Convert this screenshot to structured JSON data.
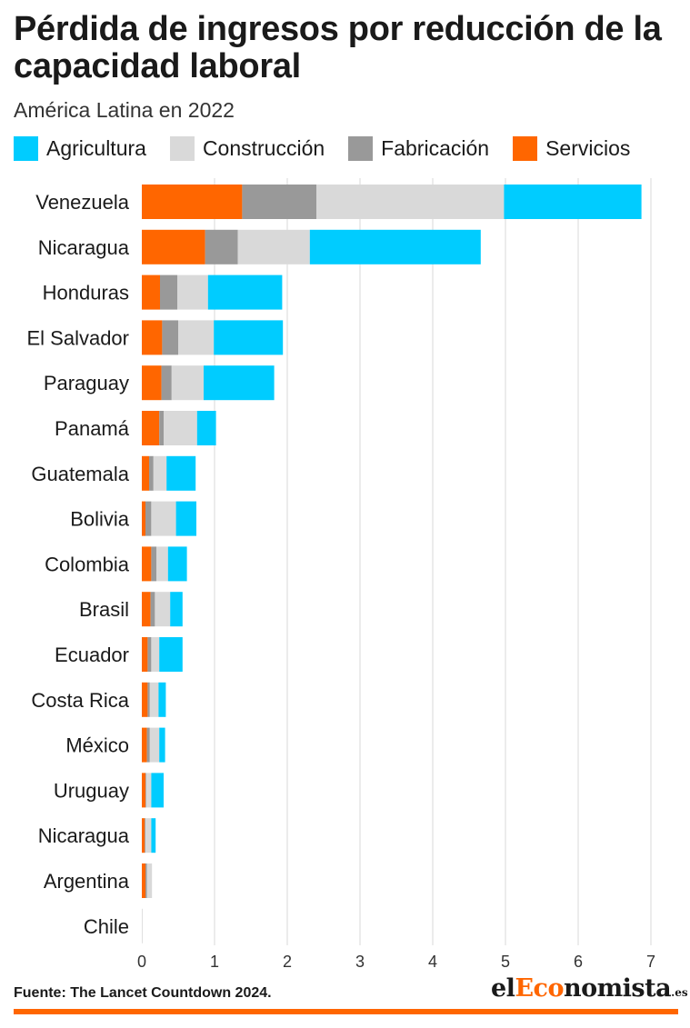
{
  "header": {
    "title": "Pérdida de ingresos por reducción de la capacidad laboral",
    "subtitle": "América Latina en 2022"
  },
  "footer": {
    "source": "Fuente: The Lancet Countdown 2024.",
    "brand_prefix": "el",
    "brand_accent": "Eco",
    "brand_main": "nomista",
    "brand_tld": ".es"
  },
  "colors": {
    "Servicios": "#ff6600",
    "Fabricación": "#999999",
    "Construcción": "#d9d9d9",
    "Agricultura": "#00ccff",
    "grid": "#e6e6e6",
    "brand_accent": "#ff6600"
  },
  "legend": [
    {
      "label": "Agricultura",
      "color": "#00ccff"
    },
    {
      "label": "Construcción",
      "color": "#d9d9d9"
    },
    {
      "label": "Fabricación",
      "color": "#999999"
    },
    {
      "label": "Servicios",
      "color": "#ff6600"
    }
  ],
  "chart_data": {
    "type": "bar",
    "orientation": "horizontal",
    "stacked": true,
    "title": "Pérdida de ingresos por reducción de la capacidad laboral",
    "subtitle": "América Latina en 2022",
    "xlim": [
      0,
      7
    ],
    "xticks": [
      0,
      1,
      2,
      3,
      4,
      5,
      6,
      7
    ],
    "grid": true,
    "legend_position": "top",
    "categories": [
      "Venezuela",
      "Nicaragua",
      "Honduras",
      "El Salvador",
      "Paraguay",
      "Panamá",
      "Guatemala",
      "Bolivia",
      "Colombia",
      "Brasil",
      "Ecuador",
      "Costa Rica",
      "México",
      "Uruguay",
      "Nicaragua",
      "Argentina",
      "Chile"
    ],
    "series": [
      {
        "name": "Servicios",
        "values": [
          1.38,
          0.87,
          0.25,
          0.28,
          0.27,
          0.24,
          0.1,
          0.05,
          0.13,
          0.12,
          0.08,
          0.08,
          0.07,
          0.05,
          0.04,
          0.05,
          0.0
        ]
      },
      {
        "name": "Fabricación",
        "values": [
          1.02,
          0.45,
          0.24,
          0.22,
          0.14,
          0.06,
          0.06,
          0.08,
          0.07,
          0.06,
          0.05,
          0.03,
          0.04,
          0.01,
          0.01,
          0.02,
          0.0
        ]
      },
      {
        "name": "Construcción",
        "values": [
          2.58,
          0.99,
          0.42,
          0.49,
          0.44,
          0.46,
          0.18,
          0.34,
          0.16,
          0.21,
          0.11,
          0.12,
          0.13,
          0.07,
          0.08,
          0.07,
          0.01
        ]
      },
      {
        "name": "Agricultura",
        "values": [
          1.89,
          2.35,
          1.02,
          0.95,
          0.97,
          0.26,
          0.4,
          0.28,
          0.26,
          0.17,
          0.32,
          0.1,
          0.08,
          0.17,
          0.06,
          0.0,
          0.0
        ]
      }
    ]
  }
}
